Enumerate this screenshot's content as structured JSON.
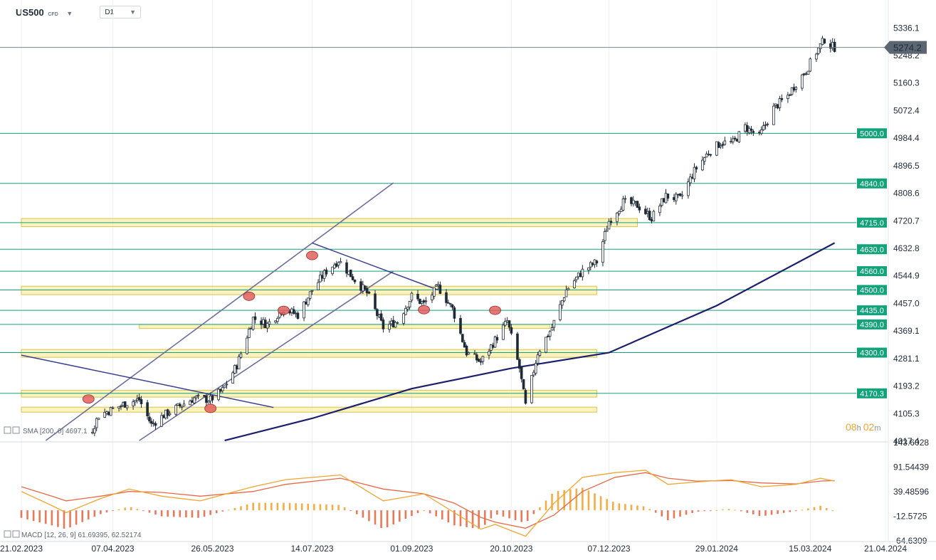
{
  "toolbar": {
    "symbol": "US500",
    "symbol_type": "CFD",
    "caret": "▼",
    "timeframe": "D1",
    "tf_caret": "▼"
  },
  "colors": {
    "candle": "#1f2a36",
    "level_line": "#12a37a",
    "level_box": "#12a37a",
    "zone_fill": "#f6e98c",
    "zone_stroke": "#d8c54c",
    "channel": "#6d6f9c",
    "trendline": "#3a3f8f",
    "ma200": "#1b1f6e",
    "macd_line": "#f0a534",
    "signal_line": "#e46a47",
    "hist_pos": "#f0a534",
    "hist_neg": "#e46a47",
    "marker": "#e05656",
    "current_price_box": "#5c6672",
    "timer": "#f0a534"
  },
  "chart_data": [
    {
      "type": "candlestick",
      "title": "US500",
      "ylim": [
        4017.4,
        5380
      ],
      "y_ticks": [
        "5336.1",
        "5248.2",
        "5160.3",
        "5072.4",
        "4984.4",
        "4896.5",
        "4808.6",
        "4720.7",
        "4632.8",
        "4544.9",
        "4457.0",
        "4369.1",
        "4281.1",
        "4193.2",
        "4105.3",
        "4017.4"
      ],
      "x_ticks": [
        "21.02.2023",
        "07.04.2023",
        "26.05.2023",
        "14.07.2023",
        "01.09.2023",
        "20.10.2023",
        "07.12.2023",
        "29.01.2024",
        "15.03.2024",
        "21.04.2024"
      ],
      "current_price": "5274.2",
      "countdown": {
        "hours": "08",
        "h": "h",
        "minutes": "02",
        "m": "m"
      },
      "path_points": [
        [
          "2023-02-21",
          4000
        ],
        [
          "2023-03-01",
          3965
        ],
        [
          "2023-03-08",
          3950
        ],
        [
          "2023-03-14",
          3870
        ],
        [
          "2023-03-20",
          3940
        ],
        [
          "2023-03-31",
          4100
        ],
        [
          "2023-04-07",
          4120
        ],
        [
          "2023-04-14",
          4140
        ],
        [
          "2023-04-20",
          4150
        ],
        [
          "2023-04-26",
          4070
        ],
        [
          "2023-05-02",
          4100
        ],
        [
          "2023-05-10",
          4130
        ],
        [
          "2023-05-17",
          4155
        ],
        [
          "2023-05-25",
          4150
        ],
        [
          "2023-05-31",
          4180
        ],
        [
          "2023-06-07",
          4260
        ],
        [
          "2023-06-15",
          4410
        ],
        [
          "2023-06-22",
          4390
        ],
        [
          "2023-06-30",
          4440
        ],
        [
          "2023-07-07",
          4420
        ],
        [
          "2023-07-14",
          4500
        ],
        [
          "2023-07-21",
          4560
        ],
        [
          "2023-07-27",
          4595
        ],
        [
          "2023-08-03",
          4540
        ],
        [
          "2023-08-10",
          4490
        ],
        [
          "2023-08-18",
          4380
        ],
        [
          "2023-08-25",
          4400
        ],
        [
          "2023-09-01",
          4480
        ],
        [
          "2023-09-07",
          4455
        ],
        [
          "2023-09-14",
          4510
        ],
        [
          "2023-09-21",
          4440
        ],
        [
          "2023-09-28",
          4300
        ],
        [
          "2023-10-05",
          4270
        ],
        [
          "2023-10-12",
          4340
        ],
        [
          "2023-10-18",
          4400
        ],
        [
          "2023-10-24",
          4250
        ],
        [
          "2023-10-27",
          4130
        ],
        [
          "2023-11-02",
          4300
        ],
        [
          "2023-11-09",
          4380
        ],
        [
          "2023-11-16",
          4500
        ],
        [
          "2023-11-24",
          4560
        ],
        [
          "2023-12-01",
          4590
        ],
        [
          "2023-12-07",
          4720
        ],
        [
          "2023-12-14",
          4780
        ],
        [
          "2023-12-21",
          4770
        ],
        [
          "2023-12-28",
          4730
        ],
        [
          "2024-01-04",
          4800
        ],
        [
          "2024-01-11",
          4790
        ],
        [
          "2024-01-18",
          4880
        ],
        [
          "2024-01-25",
          4940
        ],
        [
          "2024-01-31",
          4970
        ],
        [
          "2024-02-06",
          4970
        ],
        [
          "2024-02-12",
          5020
        ],
        [
          "2024-02-19",
          4990
        ],
        [
          "2024-02-26",
          5080
        ],
        [
          "2024-03-04",
          5120
        ],
        [
          "2024-03-08",
          5160
        ],
        [
          "2024-03-13",
          5200
        ],
        [
          "2024-03-18",
          5260
        ],
        [
          "2024-03-22",
          5300
        ],
        [
          "2024-03-25",
          5280
        ],
        [
          "2024-03-27",
          5274
        ]
      ],
      "ma200": {
        "label": "SMA",
        "params": "[200, 0]",
        "value": "4697.1",
        "points": [
          [
            "2023-06-01",
            4005
          ],
          [
            "2023-07-14",
            4090
          ],
          [
            "2023-09-01",
            4185
          ],
          [
            "2023-10-20",
            4250
          ],
          [
            "2023-12-07",
            4300
          ],
          [
            "2024-01-29",
            4450
          ],
          [
            "2024-03-27",
            4650
          ]
        ]
      },
      "levels": [
        {
          "price": 5000,
          "label": "5000.0"
        },
        {
          "price": 4840,
          "label": "4840.0"
        },
        {
          "price": 4715,
          "label": "4715.0"
        },
        {
          "price": 4630,
          "label": "4630.0"
        },
        {
          "price": 4560,
          "label": "4560.0"
        },
        {
          "price": 4500,
          "label": "4500.0"
        },
        {
          "price": 4435,
          "label": "4435.0"
        },
        {
          "price": 4390,
          "label": "4390.0"
        },
        {
          "price": 4300,
          "label": "4300.0"
        },
        {
          "price": 4170,
          "label": "4170.3"
        }
      ],
      "zones": [
        {
          "x0": "2023-02-21",
          "x1": "2023-12-21",
          "y0": 4702,
          "y1": 4728
        },
        {
          "x0": "2023-02-21",
          "x1": "2023-12-01",
          "y0": 4485,
          "y1": 4512
        },
        {
          "x0": "2023-04-20",
          "x1": "2023-11-08",
          "y0": 4377,
          "y1": 4390
        },
        {
          "x0": "2023-02-21",
          "x1": "2023-12-01",
          "y0": 4285,
          "y1": 4310
        },
        {
          "x0": "2023-02-21",
          "x1": "2023-12-01",
          "y0": 4158,
          "y1": 4180
        },
        {
          "x0": "2023-02-21",
          "x1": "2023-12-01",
          "y0": 4110,
          "y1": 4126
        }
      ],
      "trendlines": [
        {
          "kind": "channel",
          "points": [
            [
              "2023-03-05",
              4000
            ],
            [
              "2023-08-23",
              4842
            ]
          ]
        },
        {
          "kind": "channel",
          "points": [
            [
              "2023-04-20",
              4000
            ],
            [
              "2023-08-23",
              4560
            ]
          ]
        },
        {
          "kind": "trendline",
          "points": [
            [
              "2023-02-21",
              4292
            ],
            [
              "2023-06-25",
              4125
            ]
          ]
        },
        {
          "kind": "trendline",
          "points": [
            [
              "2023-07-14",
              4650
            ],
            [
              "2023-09-14",
              4500
            ]
          ]
        }
      ],
      "markers": [
        [
          "2023-03-26",
          4152
        ],
        [
          "2023-05-25",
          4122
        ],
        [
          "2023-06-13",
          4480
        ],
        [
          "2023-06-30",
          4435
        ],
        [
          "2023-07-14",
          4610
        ],
        [
          "2023-09-07",
          4437
        ],
        [
          "2023-10-12",
          4435
        ]
      ]
    },
    {
      "type": "line",
      "title": "MACD",
      "params": "[12, 26, 9]",
      "macd_value": "61.69395",
      "signal_value": "62.52174",
      "ylim": [
        -64.6309,
        143.6028
      ],
      "y_ticks": [
        "143.6028",
        "91.54439",
        "39.48596",
        "-12.5725",
        "-64.6309"
      ],
      "series": [
        {
          "key": "macd",
          "points": [
            [
              "2023-02-21",
              40
            ],
            [
              "2023-03-08",
              10
            ],
            [
              "2023-03-15",
              -5
            ],
            [
              "2023-04-01",
              25
            ],
            [
              "2023-04-15",
              45
            ],
            [
              "2023-05-01",
              30
            ],
            [
              "2023-05-20",
              20
            ],
            [
              "2023-06-15",
              50
            ],
            [
              "2023-07-01",
              65
            ],
            [
              "2023-07-28",
              75
            ],
            [
              "2023-08-18",
              20
            ],
            [
              "2023-09-07",
              35
            ],
            [
              "2023-09-22",
              -5
            ],
            [
              "2023-10-05",
              -40
            ],
            [
              "2023-10-12",
              -30
            ],
            [
              "2023-10-27",
              -55
            ],
            [
              "2023-11-10",
              15
            ],
            [
              "2023-11-24",
              70
            ],
            [
              "2023-12-10",
              80
            ],
            [
              "2023-12-25",
              85
            ],
            [
              "2024-01-05",
              55
            ],
            [
              "2024-01-19",
              60
            ],
            [
              "2024-02-05",
              65
            ],
            [
              "2024-02-20",
              50
            ],
            [
              "2024-03-08",
              55
            ],
            [
              "2024-03-20",
              68
            ],
            [
              "2024-03-27",
              62
            ]
          ]
        },
        {
          "key": "signal",
          "points": [
            [
              "2023-02-21",
              50
            ],
            [
              "2023-03-08",
              30
            ],
            [
              "2023-03-15",
              20
            ],
            [
              "2023-04-01",
              30
            ],
            [
              "2023-04-15",
              40
            ],
            [
              "2023-05-01",
              38
            ],
            [
              "2023-05-20",
              30
            ],
            [
              "2023-06-15",
              40
            ],
            [
              "2023-07-01",
              55
            ],
            [
              "2023-07-28",
              68
            ],
            [
              "2023-08-18",
              45
            ],
            [
              "2023-09-07",
              35
            ],
            [
              "2023-09-22",
              15
            ],
            [
              "2023-10-05",
              -15
            ],
            [
              "2023-10-12",
              -25
            ],
            [
              "2023-10-27",
              -38
            ],
            [
              "2023-11-10",
              -10
            ],
            [
              "2023-11-24",
              40
            ],
            [
              "2023-12-10",
              70
            ],
            [
              "2023-12-25",
              80
            ],
            [
              "2024-01-05",
              68
            ],
            [
              "2024-01-19",
              62
            ],
            [
              "2024-02-05",
              63
            ],
            [
              "2024-02-20",
              58
            ],
            [
              "2024-03-08",
              56
            ],
            [
              "2024-03-20",
              62
            ],
            [
              "2024-03-27",
              63
            ]
          ]
        }
      ]
    }
  ]
}
